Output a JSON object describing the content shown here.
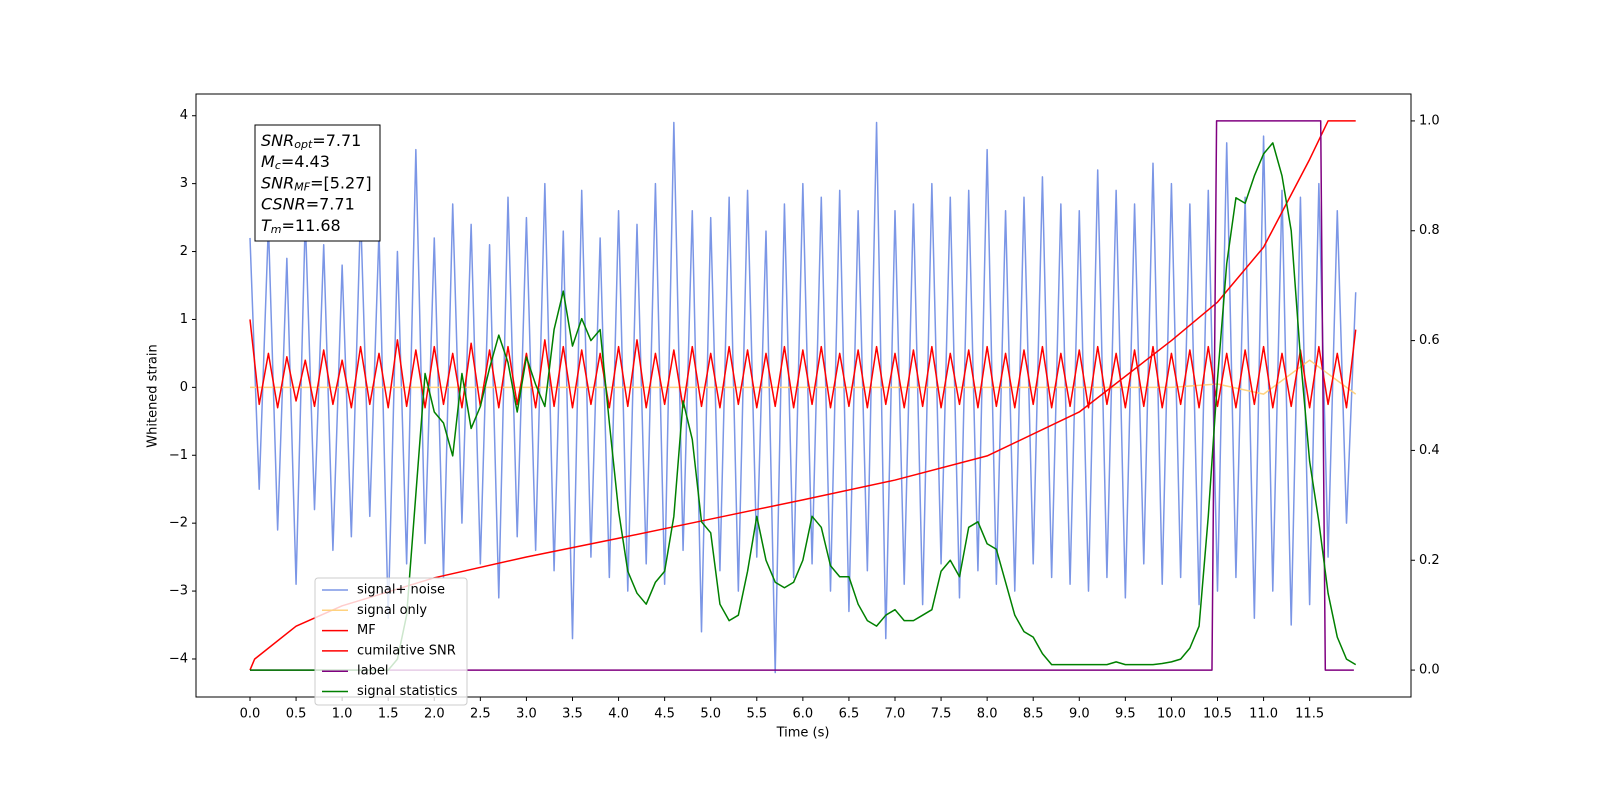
{
  "chart_data": {
    "type": "line",
    "xlabel": "Time (s)",
    "ylabel": "Whitened strain",
    "xlim": [
      -0.586,
      12.6
    ],
    "ylim": [
      -4.56,
      4.32
    ],
    "y2lim": [
      -0.049,
      1.049
    ],
    "xticks": [
      {
        "value": 0,
        "label": "0.0"
      },
      0.5,
      {
        "value": 1,
        "label": "1.0"
      },
      1.5,
      {
        "value": 2,
        "label": "2.0"
      },
      2.5,
      {
        "value": 3,
        "label": "3.0"
      },
      3.5,
      {
        "value": 4,
        "label": "4.0"
      },
      4.5,
      {
        "value": 5,
        "label": "5.0"
      },
      5.5,
      {
        "value": 6,
        "label": "6.0"
      },
      6.5,
      {
        "value": 7,
        "label": "7.0"
      },
      7.5,
      {
        "value": 8,
        "label": "8.0"
      },
      8.5,
      {
        "value": 9,
        "label": "9.0"
      },
      9.5,
      {
        "value": 10,
        "label": "10.0"
      },
      10.5,
      {
        "value": 11,
        "label": "11.0"
      },
      11.5
    ],
    "yticks": [
      {
        "value": -4,
        "label": "−4"
      },
      {
        "value": -3,
        "label": "−3"
      },
      {
        "value": -2,
        "label": "−2"
      },
      {
        "value": -1,
        "label": "−1"
      },
      0,
      1,
      2,
      3,
      4
    ],
    "y2ticks": [
      {
        "value": 0,
        "label": "0.0"
      },
      0.2,
      0.4,
      0.6,
      0.8,
      {
        "value": 1,
        "label": "1.0"
      }
    ],
    "legend": "lower left",
    "annotations": [
      {
        "base": "SNR",
        "sub": "opt",
        "text": "=7.71"
      },
      {
        "base": "M",
        "sub": "c",
        "text": "=4.43"
      },
      {
        "base": "SNR",
        "sub": "MF",
        "text": "=[5.27]"
      },
      {
        "base": "CSNR",
        "sub": "",
        "text": "=7.71"
      },
      {
        "base": "T",
        "sub": "m",
        "text": "=11.68"
      }
    ],
    "x": [
      0,
      0.1,
      0.2,
      0.3,
      0.4,
      0.5,
      0.6,
      0.7,
      0.8,
      0.9,
      1,
      1.1,
      1.2,
      1.3,
      1.4,
      1.5,
      1.6,
      1.7,
      1.8,
      1.9,
      2,
      2.1,
      2.2,
      2.3,
      2.4,
      2.5,
      2.6,
      2.7,
      2.8,
      2.9,
      3,
      3.1,
      3.2,
      3.3,
      3.4,
      3.5,
      3.6,
      3.7,
      3.8,
      3.9,
      4,
      4.1,
      4.2,
      4.3,
      4.4,
      4.5,
      4.6,
      4.7,
      4.8,
      4.9,
      5,
      5.1,
      5.2,
      5.3,
      5.4,
      5.5,
      5.6,
      5.7,
      5.8,
      5.9,
      6,
      6.1,
      6.2,
      6.3,
      6.4,
      6.5,
      6.6,
      6.7,
      6.8,
      6.9,
      7,
      7.1,
      7.2,
      7.3,
      7.4,
      7.5,
      7.6,
      7.7,
      7.8,
      7.9,
      8,
      8.1,
      8.2,
      8.3,
      8.4,
      8.5,
      8.6,
      8.7,
      8.8,
      8.9,
      9,
      9.1,
      9.2,
      9.3,
      9.4,
      9.5,
      9.6,
      9.7,
      9.8,
      9.9,
      10,
      10.1,
      10.2,
      10.3,
      10.4,
      10.5,
      10.6,
      10.7,
      10.8,
      10.9,
      11,
      11.1,
      11.2,
      11.3,
      11.4,
      11.5,
      11.6,
      11.7,
      11.8,
      11.9,
      12
    ],
    "series": [
      {
        "name": "signal+ noise",
        "color": "#7b96e6",
        "values": [
          2.2,
          -1.5,
          2.4,
          -2.1,
          1.9,
          -2.9,
          2.5,
          -1.8,
          2.1,
          -2.4,
          1.8,
          -2.2,
          2.6,
          -1.9,
          2.3,
          -3.4,
          2.0,
          -2.6,
          3.5,
          -2.3,
          2.2,
          -2.8,
          2.7,
          -2.0,
          2.4,
          -2.6,
          2.1,
          -3.1,
          2.8,
          -2.2,
          2.5,
          -2.4,
          3.0,
          -2.7,
          2.3,
          -3.7,
          2.9,
          -2.5,
          2.2,
          -2.8,
          2.6,
          -3.0,
          2.4,
          -2.6,
          3.0,
          -2.9,
          3.9,
          -2.4,
          2.6,
          -3.6,
          2.5,
          -2.7,
          2.8,
          -3.0,
          2.9,
          -2.5,
          2.3,
          -4.2,
          2.7,
          -2.8,
          3.0,
          -2.6,
          2.8,
          -3.0,
          2.9,
          -3.3,
          2.6,
          -2.7,
          3.9,
          -3.7,
          2.6,
          -2.9,
          2.7,
          -3.2,
          3.0,
          -2.6,
          2.8,
          -3.1,
          2.9,
          -2.7,
          3.5,
          -2.9,
          2.6,
          -3.0,
          2.8,
          -2.6,
          3.1,
          -2.8,
          2.7,
          -2.9,
          2.6,
          -3.0,
          3.2,
          -2.8,
          2.9,
          -3.1,
          2.7,
          -2.6,
          3.3,
          -2.9,
          3.0,
          -2.8,
          2.7,
          -3.2,
          2.9,
          -3.0,
          3.6,
          -2.8,
          2.8,
          -3.4,
          3.7,
          -3.0,
          2.9,
          -3.5,
          2.8,
          -3.2,
          3.0,
          -2.5,
          2.6,
          -2.0,
          1.4
        ]
      },
      {
        "name": "signal only",
        "color": "#ffd27f",
        "x": [
          0,
          0.5,
          1,
          1.5,
          2,
          2.5,
          3,
          3.5,
          4,
          4.5,
          5,
          5.5,
          6,
          6.5,
          7,
          7.5,
          8,
          8.5,
          9,
          9.5,
          10,
          10.5,
          11,
          11.5,
          12
        ],
        "values": [
          0,
          0,
          0,
          0,
          0,
          0,
          0,
          0,
          0,
          0,
          0,
          0,
          0,
          0,
          0,
          0,
          0,
          0,
          0,
          0,
          0,
          0.05,
          -0.1,
          0.4,
          -0.1
        ]
      },
      {
        "name": "MF",
        "color": "#ff0000",
        "values": [
          1.0,
          -0.25,
          0.5,
          -0.3,
          0.45,
          -0.2,
          0.4,
          -0.28,
          0.55,
          -0.25,
          0.4,
          -0.3,
          0.6,
          -0.25,
          0.5,
          -0.3,
          0.7,
          -0.28,
          0.55,
          -0.3,
          0.6,
          -0.25,
          0.5,
          -0.3,
          0.65,
          -0.28,
          0.55,
          -0.3,
          0.6,
          -0.25,
          0.5,
          -0.3,
          0.7,
          -0.28,
          0.6,
          -0.3,
          0.55,
          -0.25,
          0.5,
          -0.3,
          0.6,
          -0.28,
          0.7,
          -0.3,
          0.5,
          -0.25,
          0.55,
          -0.3,
          0.6,
          -0.28,
          0.5,
          -0.3,
          0.6,
          -0.25,
          0.55,
          -0.3,
          0.5,
          -0.28,
          0.6,
          -0.3,
          0.55,
          -0.25,
          0.6,
          -0.3,
          0.5,
          -0.28,
          0.55,
          -0.3,
          0.6,
          -0.25,
          0.5,
          -0.3,
          0.55,
          -0.28,
          0.6,
          -0.3,
          0.5,
          -0.25,
          0.55,
          -0.3,
          0.6,
          -0.28,
          0.5,
          -0.3,
          0.55,
          -0.25,
          0.6,
          -0.3,
          0.5,
          -0.28,
          0.55,
          -0.3,
          0.6,
          -0.25,
          0.5,
          -0.3,
          0.55,
          -0.28,
          0.6,
          -0.3,
          0.5,
          -0.25,
          0.55,
          -0.3,
          0.6,
          -0.28,
          0.5,
          -0.3,
          0.55,
          -0.25,
          0.6,
          -0.3,
          0.5,
          -0.28,
          0.55,
          -0.3,
          0.6,
          -0.25,
          0.5,
          -0.3,
          0.85
        ]
      },
      {
        "name": "cumilative SNR",
        "color": "#ff0000",
        "axis": "y2",
        "x": [
          0,
          0.05,
          0.5,
          1,
          2,
          3,
          4,
          5,
          6,
          7,
          8,
          9,
          10,
          10.5,
          11,
          11.5,
          11.7,
          12
        ],
        "values": [
          0,
          0.02,
          0.08,
          0.117,
          0.168,
          0.206,
          0.24,
          0.275,
          0.31,
          0.346,
          0.39,
          0.47,
          0.6,
          0.67,
          0.77,
          0.93,
          1,
          1
        ]
      },
      {
        "name": "label",
        "color": "#800080",
        "axis": "y2",
        "x": [
          0,
          10.44,
          10.49,
          11.62,
          11.67,
          11.98
        ],
        "values": [
          0,
          0,
          1,
          1,
          0,
          0
        ]
      },
      {
        "name": "signal statistics",
        "color": "#008000",
        "axis": "y2",
        "values": [
          0,
          0,
          0,
          0,
          0,
          0,
          0,
          0,
          0,
          0,
          0,
          0,
          0,
          0,
          0,
          0,
          0.02,
          0.1,
          0.32,
          0.54,
          0.47,
          0.45,
          0.39,
          0.54,
          0.44,
          0.48,
          0.55,
          0.61,
          0.56,
          0.47,
          0.57,
          0.52,
          0.48,
          0.62,
          0.69,
          0.59,
          0.64,
          0.6,
          0.62,
          0.45,
          0.29,
          0.18,
          0.14,
          0.12,
          0.16,
          0.18,
          0.28,
          0.49,
          0.42,
          0.27,
          0.25,
          0.12,
          0.09,
          0.1,
          0.18,
          0.28,
          0.2,
          0.16,
          0.15,
          0.16,
          0.2,
          0.28,
          0.26,
          0.19,
          0.17,
          0.17,
          0.12,
          0.09,
          0.08,
          0.1,
          0.11,
          0.09,
          0.09,
          0.1,
          0.11,
          0.18,
          0.2,
          0.17,
          0.26,
          0.27,
          0.23,
          0.22,
          0.16,
          0.1,
          0.07,
          0.06,
          0.03,
          0.01,
          0.01,
          0.01,
          0.01,
          0.01,
          0.01,
          0.01,
          0.015,
          0.01,
          0.01,
          0.01,
          0.01,
          0.012,
          0.015,
          0.02,
          0.04,
          0.08,
          0.28,
          0.53,
          0.74,
          0.86,
          0.85,
          0.9,
          0.94,
          0.96,
          0.9,
          0.8,
          0.57,
          0.38,
          0.27,
          0.14,
          0.06,
          0.02,
          0.01
        ]
      }
    ]
  }
}
